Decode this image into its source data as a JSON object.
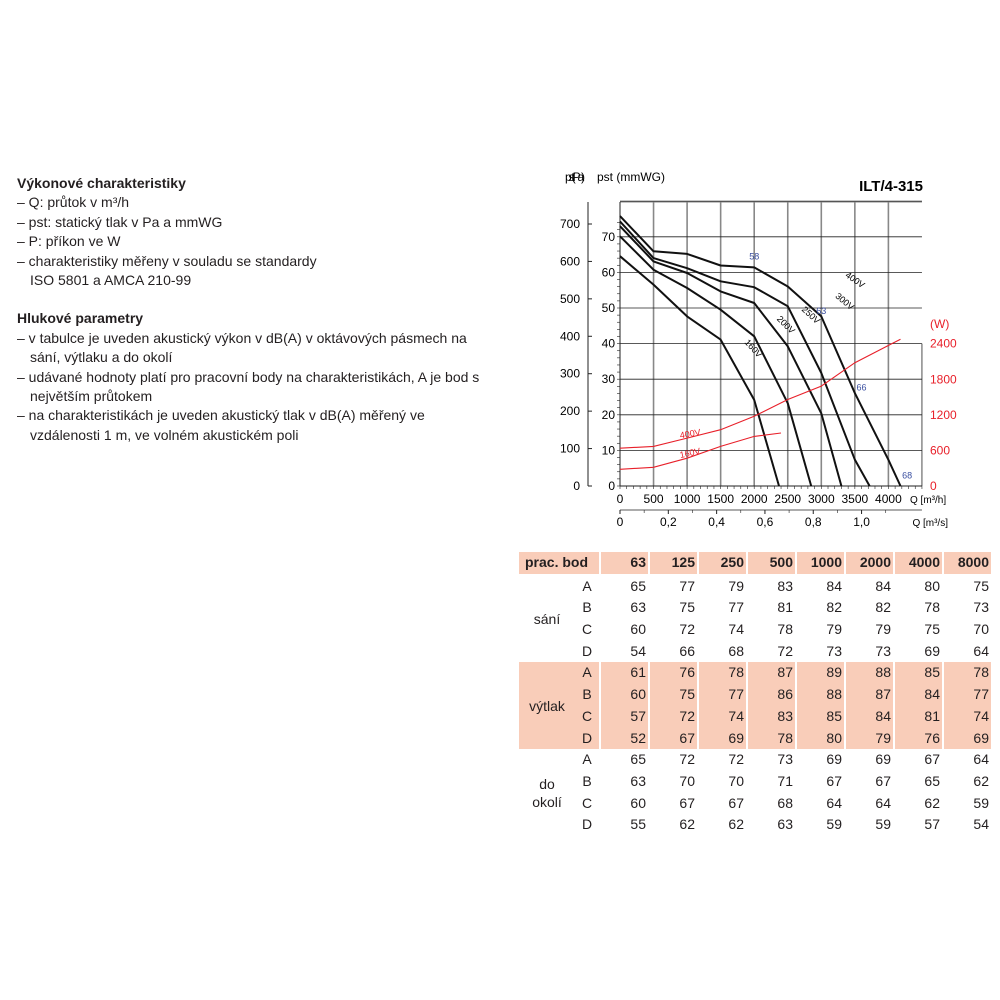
{
  "text": {
    "performance_heading": "Výkonové charakteristiky",
    "performance_items": [
      "– Q: průtok v m³/h",
      "– pst: statický tlak v Pa a mmWG",
      "– P: příkon ve W",
      "– charakteristiky měřeny v souladu se standardy ISO 5801 a AMCA 210-99"
    ],
    "noise_heading": "Hlukové parametry",
    "noise_items": [
      "– v tabulce je uveden akustický výkon v dB(A) v oktávových pásmech na sání, výtlaku a do okolí",
      "– udávané hodnoty platí pro pracovní body na charakteristikách, A je bod s největším průtokem",
      "– na charakteristikách je uveden akustický tlak v dB(A) měřený ve vzdálenosti 1 m, ve volném akustickém poli"
    ]
  },
  "chart_data": {
    "type": "line",
    "title": "ILT/4-315",
    "xlabel": "Q [m³/h]",
    "x2label": "Q [m³/s]",
    "ylabel": "pst (Pa)",
    "y2label": "pst (mmWG)",
    "y3label": "(W)",
    "xlim": [
      0,
      4500
    ],
    "ylim": [
      0,
      760
    ],
    "x_ticks": [
      0,
      500,
      1000,
      1500,
      2000,
      2500,
      3000,
      3500,
      4000
    ],
    "x2_ticks": [
      "0",
      "0,2",
      "0,4",
      "0,6",
      "0,8",
      "1,0"
    ],
    "y_ticks_pa": [
      0,
      100,
      200,
      300,
      400,
      500,
      600,
      700
    ],
    "y_ticks_mmwg": [
      0,
      10,
      20,
      30,
      40,
      50,
      60,
      70
    ],
    "y_ticks_w": [
      0,
      600,
      1200,
      1800,
      2400
    ],
    "grid": true,
    "colors": {
      "pressure": "#111111",
      "power": "#e8202a",
      "noise_label": "#3a4fa0"
    },
    "pressure_series": [
      {
        "name": "400V",
        "x": [
          0,
          500,
          1000,
          1500,
          2000,
          2500,
          3000,
          3500,
          4000,
          4180
        ],
        "y": [
          721,
          627,
          620,
          589,
          584,
          533,
          453,
          248,
          70,
          0
        ]
      },
      {
        "name": "300V",
        "x": [
          0,
          500,
          1000,
          1500,
          2000,
          2500,
          3000,
          3500,
          3720
        ],
        "y": [
          707,
          609,
          582,
          547,
          531,
          480,
          302,
          70,
          0
        ]
      },
      {
        "name": "250V",
        "x": [
          0,
          500,
          1000,
          1500,
          2000,
          2500,
          3000,
          3300
        ],
        "y": [
          694,
          600,
          569,
          520,
          489,
          373,
          194,
          0
        ]
      },
      {
        "name": "200V",
        "x": [
          0,
          500,
          1000,
          1500,
          2000,
          2500,
          2850
        ],
        "y": [
          667,
          578,
          529,
          471,
          400,
          221,
          0
        ]
      },
      {
        "name": "160V",
        "x": [
          0,
          500,
          1000,
          1500,
          2000,
          2370
        ],
        "y": [
          614,
          538,
          453,
          391,
          230,
          0
        ]
      }
    ],
    "power_series": [
      {
        "name": "400V",
        "x": [
          0,
          500,
          1000,
          1500,
          2000,
          2500,
          3000,
          3500,
          4180
        ],
        "y": [
          638,
          667,
          808,
          949,
          1175,
          1458,
          1684,
          2079,
          2475
        ]
      },
      {
        "name": "160V",
        "x": [
          0,
          500,
          1000,
          1500,
          2000,
          2400
        ],
        "y": [
          282,
          316,
          469,
          667,
          836,
          893
        ]
      }
    ],
    "noise_labels": [
      {
        "text": "58",
        "x": 2000,
        "y": 605
      },
      {
        "text": "63",
        "x": 3000,
        "y": 460
      },
      {
        "text": "66",
        "x": 3600,
        "y": 255
      },
      {
        "text": "68",
        "x": 4280,
        "y": 20
      }
    ]
  },
  "table": {
    "header": [
      "prac. bod",
      "63",
      "125",
      "250",
      "500",
      "1000",
      "2000",
      "4000",
      "8000"
    ],
    "groups": [
      {
        "label": "sání",
        "rows": [
          {
            "point": "A",
            "values": [
              "65",
              "77",
              "79",
              "83",
              "84",
              "84",
              "80",
              "75"
            ]
          },
          {
            "point": "B",
            "values": [
              "63",
              "75",
              "77",
              "81",
              "82",
              "82",
              "78",
              "73"
            ]
          },
          {
            "point": "C",
            "values": [
              "60",
              "72",
              "74",
              "78",
              "79",
              "79",
              "75",
              "70"
            ]
          },
          {
            "point": "D",
            "values": [
              "54",
              "66",
              "68",
              "72",
              "73",
              "73",
              "69",
              "64"
            ]
          }
        ]
      },
      {
        "label": "výtlak",
        "rows": [
          {
            "point": "A",
            "values": [
              "61",
              "76",
              "78",
              "87",
              "89",
              "88",
              "85",
              "78"
            ]
          },
          {
            "point": "B",
            "values": [
              "60",
              "75",
              "77",
              "86",
              "88",
              "87",
              "84",
              "77"
            ]
          },
          {
            "point": "C",
            "values": [
              "57",
              "72",
              "74",
              "83",
              "85",
              "84",
              "81",
              "74"
            ]
          },
          {
            "point": "D",
            "values": [
              "52",
              "67",
              "69",
              "78",
              "80",
              "79",
              "76",
              "69"
            ]
          }
        ]
      },
      {
        "label": "do okolí",
        "rows": [
          {
            "point": "A",
            "values": [
              "65",
              "72",
              "72",
              "73",
              "69",
              "69",
              "67",
              "64"
            ]
          },
          {
            "point": "B",
            "values": [
              "63",
              "70",
              "70",
              "71",
              "67",
              "67",
              "65",
              "62"
            ]
          },
          {
            "point": "C",
            "values": [
              "60",
              "67",
              "67",
              "68",
              "64",
              "64",
              "62",
              "59"
            ]
          },
          {
            "point": "D",
            "values": [
              "55",
              "62",
              "62",
              "63",
              "59",
              "59",
              "57",
              "54"
            ]
          }
        ]
      }
    ]
  }
}
